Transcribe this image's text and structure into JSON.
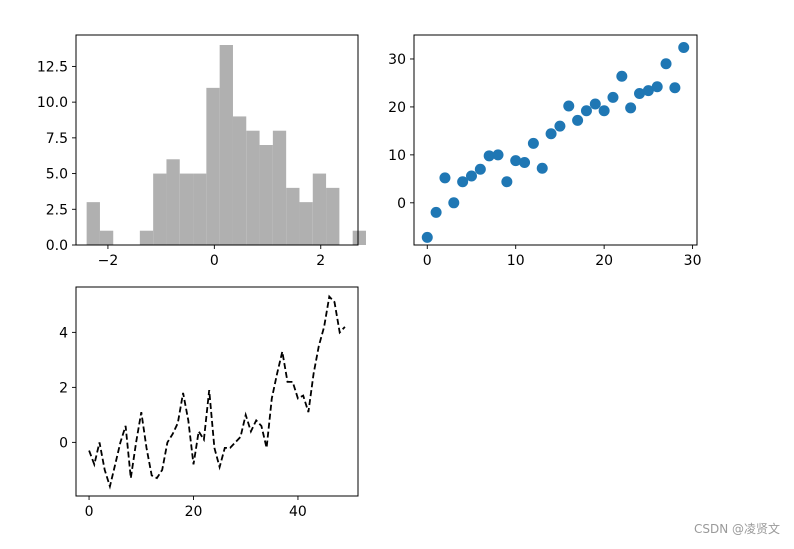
{
  "watermark": "CSDN @凌贤文",
  "chart_data": [
    {
      "type": "bar",
      "subtype": "histogram",
      "color": "#b0b0b0",
      "bin_range": [
        -2.4,
        2.6
      ],
      "bin_width": 0.25,
      "values": [
        3,
        1,
        0,
        0,
        1,
        5,
        6,
        5,
        5,
        11,
        14,
        9,
        8,
        7,
        8,
        4,
        3,
        5,
        4,
        0,
        1
      ],
      "xlim": [
        -2.6,
        2.7
      ],
      "ylim": [
        0,
        14.7
      ],
      "xticks": [
        {
          "v": -2,
          "label": "−2"
        },
        {
          "v": 0,
          "label": "0"
        },
        {
          "v": 2,
          "label": "2"
        }
      ],
      "yticks": [
        {
          "v": 0,
          "label": "0.0"
        },
        {
          "v": 2.5,
          "label": "2.5"
        },
        {
          "v": 5,
          "label": "5.0"
        },
        {
          "v": 7.5,
          "label": "7.5"
        },
        {
          "v": 10,
          "label": "10.0"
        },
        {
          "v": 12.5,
          "label": "12.5"
        }
      ]
    },
    {
      "type": "scatter",
      "color": "#1f77b4",
      "x": [
        0,
        1,
        2,
        3,
        4,
        5,
        6,
        7,
        8,
        9,
        10,
        11,
        12,
        13,
        14,
        15,
        16,
        17,
        18,
        19,
        20,
        21,
        22,
        23,
        24,
        25,
        26,
        27,
        28,
        29
      ],
      "y": [
        -7.2,
        -2,
        5.2,
        0,
        4.4,
        5.6,
        7,
        9.8,
        10,
        4.4,
        8.8,
        8.4,
        12.4,
        7.2,
        14.4,
        16,
        20.2,
        17.2,
        19.2,
        20.6,
        19.2,
        22,
        26.4,
        19.8,
        22.8,
        23.4,
        24.2,
        29,
        24,
        32.4
      ],
      "xlim": [
        -1.5,
        30.5
      ],
      "ylim": [
        -8.8,
        35
      ],
      "xticks": [
        {
          "v": 0,
          "label": "0"
        },
        {
          "v": 10,
          "label": "10"
        },
        {
          "v": 20,
          "label": "20"
        },
        {
          "v": 30,
          "label": "30"
        }
      ],
      "yticks": [
        {
          "v": 0,
          "label": "0"
        },
        {
          "v": 10,
          "label": "10"
        },
        {
          "v": 20,
          "label": "20"
        },
        {
          "v": 30,
          "label": "30"
        }
      ]
    },
    {
      "type": "line",
      "color": "#000000",
      "linestyle": "dashed",
      "x": [
        0,
        1,
        2,
        3,
        4,
        5,
        6,
        7,
        8,
        9,
        10,
        11,
        12,
        13,
        14,
        15,
        16,
        17,
        18,
        19,
        20,
        21,
        22,
        23,
        24,
        25,
        26,
        27,
        28,
        29,
        30,
        31,
        32,
        33,
        34,
        35,
        36,
        37,
        38,
        39,
        40,
        41,
        42,
        43,
        44,
        45,
        46,
        47,
        48,
        49
      ],
      "y": [
        -0.3,
        -0.8,
        0,
        -1,
        -1.6,
        -0.8,
        0,
        0.6,
        -1.3,
        0,
        1.1,
        -0.2,
        -1.2,
        -1.3,
        -1,
        0,
        0.3,
        0.7,
        1.8,
        0.8,
        -0.8,
        0.4,
        0.1,
        1.9,
        -0.2,
        -0.9,
        -0.2,
        -0.2,
        0,
        0.2,
        1,
        0.4,
        0.8,
        0.6,
        -0.2,
        1.6,
        2.5,
        3.3,
        2.2,
        2.2,
        1.6,
        1.7,
        1.1,
        2.5,
        3.5,
        4.2,
        5.3,
        5.1,
        4,
        4.2
      ],
      "xlim": [
        -2.5,
        51.5
      ],
      "ylim": [
        -1.95,
        5.65
      ],
      "xticks": [
        {
          "v": 0,
          "label": "0"
        },
        {
          "v": 20,
          "label": "20"
        },
        {
          "v": 40,
          "label": "40"
        }
      ],
      "yticks": [
        {
          "v": 0,
          "label": "0"
        },
        {
          "v": 2,
          "label": "2"
        },
        {
          "v": 4,
          "label": "4"
        }
      ]
    }
  ]
}
